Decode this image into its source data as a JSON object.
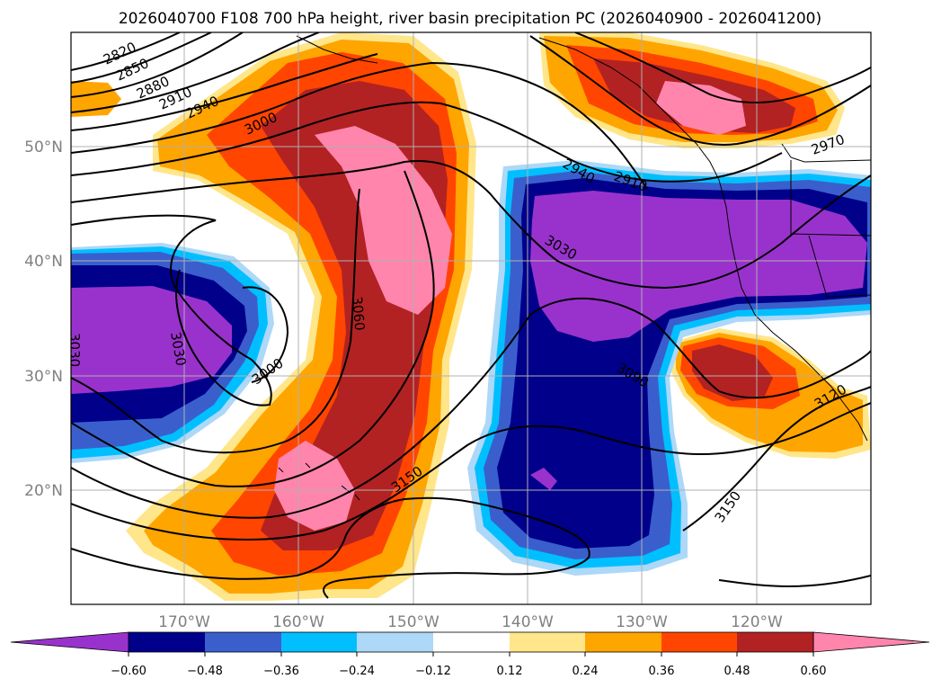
{
  "title": "2026040700 F108 700 hPa height, river basin precipitation PC (2026040900 - 2026041200)",
  "lat_labels": [
    "50°N",
    "40°N",
    "30°N",
    "20°N"
  ],
  "lon_labels": [
    "170°W",
    "160°W",
    "150°W",
    "140°W",
    "130°W",
    "120°W"
  ],
  "contour_labels": [
    "2820",
    "2850",
    "2880",
    "2910",
    "2940",
    "3000",
    "2940",
    "2910",
    "2970",
    "3030",
    "3060",
    "3030",
    "3000",
    "3090",
    "3120",
    "3150",
    "3150",
    "3030"
  ],
  "colorbar": {
    "tick_labels": [
      "−0.60",
      "−0.48",
      "−0.36",
      "−0.24",
      "−0.12",
      "0.12",
      "0.24",
      "0.36",
      "0.48",
      "0.60"
    ],
    "colors": [
      "#9932cc",
      "#00008b",
      "#3a5fcd",
      "#00bfff",
      "#add8f7",
      "#ffffff",
      "#ffe68a",
      "#ffa500",
      "#ff4500",
      "#b22222",
      "#ff85ad"
    ]
  }
}
